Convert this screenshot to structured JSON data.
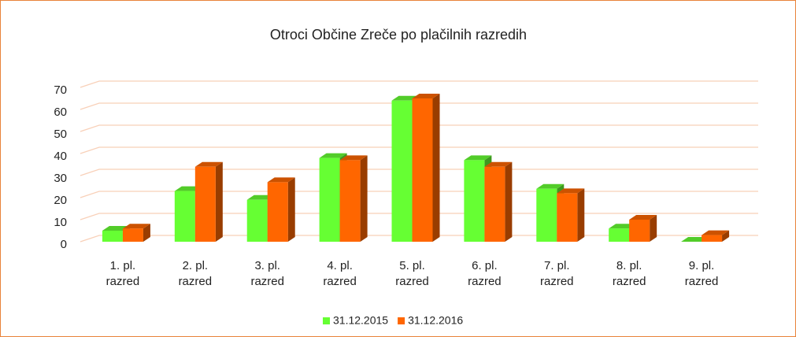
{
  "chart_data": {
    "type": "bar3d",
    "title": "Otroci Občine Zreče po plačilnih razredih",
    "categories": [
      "1. pl. razred",
      "2. pl. razred",
      "3. pl. razred",
      "4. pl. razred",
      "5. pl. razred",
      "6. pl. razred",
      "7. pl. razred",
      "8. pl. razred",
      "9. pl. razred"
    ],
    "series": [
      {
        "name": "31.12.2015",
        "color": "#66ff33",
        "values": [
          5,
          23,
          19,
          38,
          64,
          37,
          24,
          6,
          0
        ]
      },
      {
        "name": "31.12.2016",
        "color": "#ff6600",
        "values": [
          6,
          34,
          27,
          37,
          65,
          34,
          22,
          10,
          3
        ]
      }
    ],
    "ylim": [
      0,
      70
    ],
    "yticks": [
      0,
      10,
      20,
      30,
      40,
      50,
      60,
      70
    ],
    "grid": true,
    "legend": "bottom"
  }
}
